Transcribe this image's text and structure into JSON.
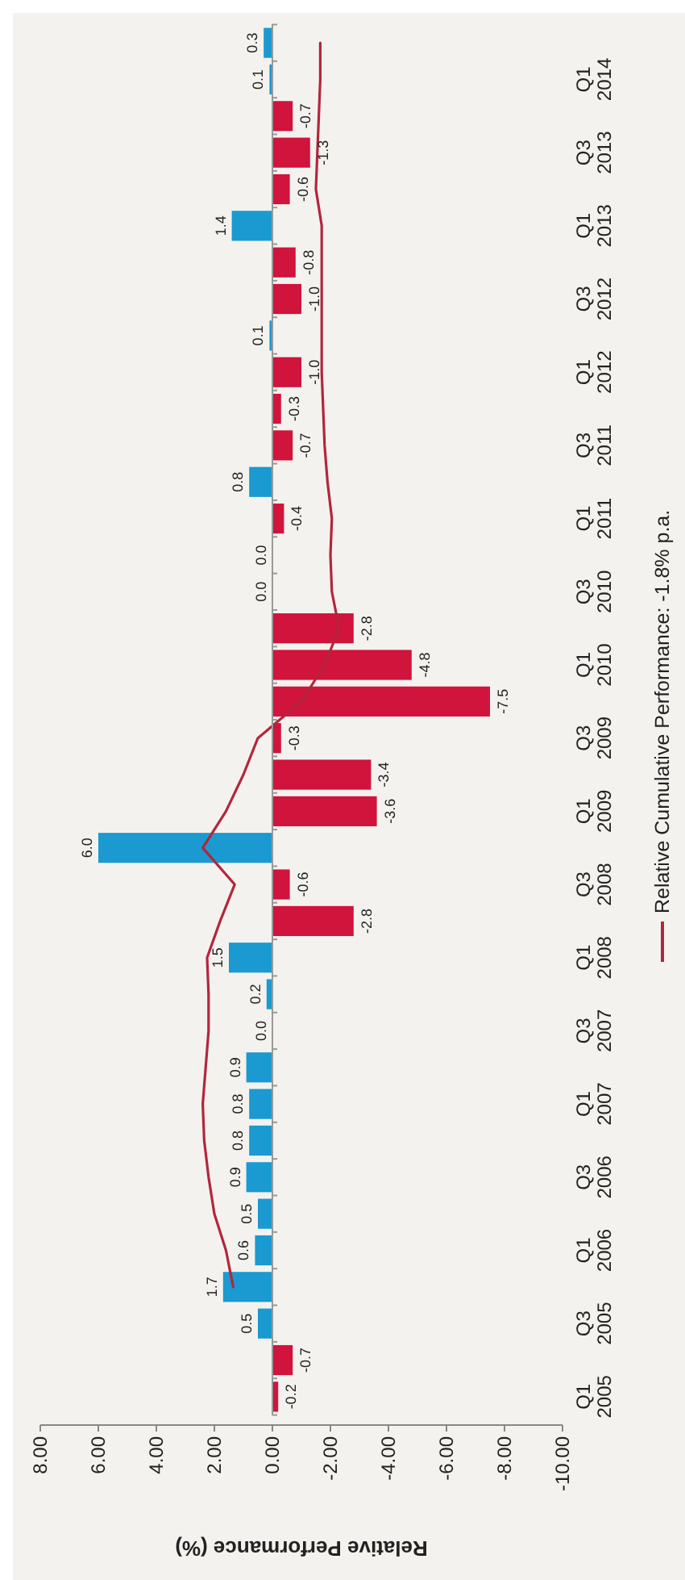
{
  "chart_data": {
    "type": "bar",
    "orientation": "horizontal",
    "xlabel": "Relative Performance (%)",
    "categories": [
      null,
      "Q1 2014",
      null,
      "Q3 2013",
      null,
      "Q1 2013",
      null,
      "Q3 2012",
      null,
      "Q1 2012",
      null,
      "Q3 2011",
      null,
      "Q1 2011",
      null,
      "Q3 2010",
      null,
      "Q1 2010",
      null,
      "Q3 2009",
      null,
      "Q1 2009",
      null,
      "Q3 2008",
      null,
      "Q1 2008",
      null,
      "Q3 2007",
      null,
      "Q1 2007",
      null,
      "Q3 2006",
      null,
      "Q1 2006",
      null,
      "Q3 2005",
      null,
      "Q1 2005"
    ],
    "series": [
      {
        "values": [
          0.3,
          0.1,
          -0.7,
          -1.3,
          -0.6,
          1.4,
          -0.8,
          -1.0,
          0.1,
          -1.0,
          -0.3,
          -0.7,
          0.8,
          -0.4,
          0.0,
          0.0,
          -2.8,
          -4.8,
          -7.5,
          -0.3,
          -3.4,
          -3.6,
          6.0,
          -0.6,
          -2.8,
          1.5,
          0.2,
          0.0,
          0.9,
          0.8,
          0.8,
          0.9,
          0.5,
          0.6,
          1.7,
          0.5,
          -0.7,
          -0.2
        ],
        "colors": [
          "#1a9ad0",
          "#1a9ad0",
          "#d0143c",
          "#d0143c",
          "#d0143c",
          "#1a9ad0",
          "#d0143c",
          "#d0143c",
          "#1a9ad0",
          "#d0143c",
          "#d0143c",
          "#d0143c",
          "#1a9ad0",
          "#d0143c",
          "#1a9ad0",
          "#1a9ad0",
          "#d0143c",
          "#d0143c",
          "#d0143c",
          "#d0143c",
          "#d0143c",
          "#d0143c",
          "#1a9ad0",
          "#d0143c",
          "#d0143c",
          "#1a9ad0",
          "#1a9ad0",
          "#1a9ad0",
          "#1a9ad0",
          "#1a9ad0",
          "#1a9ad0",
          "#1a9ad0",
          "#1a9ad0",
          "#1a9ad0",
          "#1a9ad0",
          "#1a9ad0",
          "#d0143c",
          "#d0143c"
        ],
        "value_labels": [
          "0.3",
          "0.1",
          "-0.7",
          "-1.3",
          "-0.6",
          "1.4",
          "-0.8",
          "-1.0",
          "0.1",
          "-1.0",
          "-0.3",
          "-0.7",
          "0.8",
          "-0.4",
          "0.0",
          "0.0",
          "-2.8",
          "-4.8",
          "-7.5",
          "-0.3",
          "-3.4",
          "-3.6",
          "6.0",
          "-0.6",
          "-2.8",
          "1.5",
          "0.2",
          "0.0",
          "0.9",
          "0.8",
          "0.8",
          "0.9",
          "0.5",
          "0.6",
          "1.7",
          "0.5",
          "-0.7",
          "-0.2"
        ]
      },
      {
        "type": "line",
        "name": "Relative Cumulative Performance: -1.8% p.a.",
        "color": "#b3263c",
        "values": [
          -1.65,
          -1.65,
          -1.6,
          -1.55,
          -1.5,
          -1.7,
          -1.7,
          -1.7,
          -1.7,
          -1.7,
          -1.75,
          -1.8,
          -1.9,
          -2.05,
          -2.0,
          -2.05,
          -2.3,
          -1.8,
          -1.0,
          0.5,
          1.0,
          1.6,
          2.4,
          1.3,
          1.8,
          2.25,
          2.2,
          2.2,
          2.3,
          2.4,
          2.35,
          2.2,
          2.0,
          1.6,
          1.35,
          null,
          null,
          null
        ]
      }
    ],
    "xlim": [
      8,
      -10
    ],
    "xticks": [
      {
        "value": 8,
        "label": "8.00"
      },
      {
        "value": 6,
        "label": "6.00"
      },
      {
        "value": 4,
        "label": "4.00"
      },
      {
        "value": 2,
        "label": "2.00"
      },
      {
        "value": 0,
        "label": "0.00"
      },
      {
        "value": -2,
        "label": "-2.00"
      },
      {
        "value": -4,
        "label": "-4.00"
      },
      {
        "value": -6,
        "label": "-6.00"
      },
      {
        "value": -8,
        "label": "-8.00"
      },
      {
        "value": -10,
        "label": "-10.00"
      }
    ],
    "legend": "right",
    "marker": "none",
    "line_style": "solid"
  }
}
